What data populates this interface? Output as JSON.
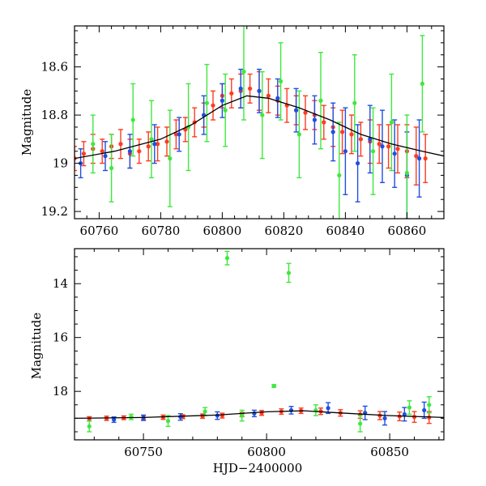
{
  "chart_data": [
    {
      "type": "scatter",
      "title": "",
      "xlabel": "",
      "ylabel": "Magnitude",
      "xlim": [
        60752,
        60872
      ],
      "ylim": [
        19.23,
        18.43
      ],
      "y_inverted": true,
      "xticks": [
        60760,
        60780,
        60800,
        60820,
        60840,
        60860
      ],
      "xtick_labels": [
        "60760",
        "60780",
        "60800",
        "60820",
        "60840",
        "60860"
      ],
      "yticks": [
        18.6,
        18.8,
        19.0,
        19.2
      ],
      "ytick_labels": [
        "18.6",
        "18.8",
        "19",
        "19.2"
      ],
      "grid": false,
      "legend": "none",
      "series": [
        {
          "color": "#ff3b1f",
          "x": [
            60752,
            60755,
            60758,
            60761,
            60764,
            60767,
            60770,
            60773,
            60776,
            60779,
            60782,
            60785,
            60788,
            60791,
            60794,
            60797,
            60800,
            60803,
            60806,
            60809,
            60812,
            60815,
            60818,
            60821,
            60824,
            60827,
            60830,
            60833,
            60836,
            60839,
            60842,
            60845,
            60848,
            60851,
            60854,
            60857,
            60860,
            60863,
            60866
          ],
          "y": [
            18.98,
            18.96,
            18.94,
            18.95,
            18.93,
            18.92,
            18.96,
            18.95,
            18.93,
            18.92,
            18.91,
            18.88,
            18.86,
            18.83,
            18.8,
            18.76,
            18.72,
            18.71,
            18.7,
            18.69,
            18.7,
            18.72,
            18.74,
            18.76,
            18.78,
            18.79,
            18.8,
            18.83,
            18.85,
            18.87,
            18.88,
            18.9,
            18.91,
            18.92,
            18.93,
            18.94,
            18.95,
            18.97,
            18.98
          ],
          "yerr": [
            0.05,
            0.05,
            0.06,
            0.05,
            0.05,
            0.06,
            0.06,
            0.05,
            0.06,
            0.07,
            0.06,
            0.06,
            0.05,
            0.06,
            0.05,
            0.06,
            0.05,
            0.06,
            0.07,
            0.06,
            0.08,
            0.07,
            0.06,
            0.07,
            0.06,
            0.07,
            0.06,
            0.07,
            0.08,
            0.09,
            0.08,
            0.07,
            0.09,
            0.08,
            0.09,
            0.1,
            0.11,
            0.12,
            0.1
          ]
        },
        {
          "color": "#1f4fe0",
          "x": [
            60754,
            60762,
            60770,
            60778,
            60786,
            60794,
            60800,
            60806,
            60812,
            60818,
            60824,
            60830,
            60836,
            60840,
            60844,
            60848,
            60852,
            60856,
            60860,
            60864
          ],
          "y": [
            19.0,
            18.97,
            18.95,
            18.92,
            18.88,
            18.8,
            18.74,
            18.69,
            18.7,
            18.73,
            18.78,
            18.82,
            18.87,
            18.95,
            19.0,
            18.9,
            18.93,
            18.96,
            19.05,
            18.98
          ],
          "yerr": [
            0.06,
            0.06,
            0.07,
            0.08,
            0.07,
            0.08,
            0.07,
            0.08,
            0.09,
            0.08,
            0.09,
            0.1,
            0.12,
            0.18,
            0.16,
            0.14,
            0.15,
            0.14,
            0.18,
            0.16
          ]
        },
        {
          "color": "#3ee83e",
          "x": [
            60758,
            60764,
            60771,
            60777,
            60783,
            60789,
            60795,
            60801,
            60807,
            60813,
            60819,
            60825,
            60832,
            60838,
            60843,
            60849,
            60855,
            60860,
            60865
          ],
          "y": [
            18.92,
            19.02,
            18.82,
            18.9,
            18.98,
            18.85,
            18.75,
            18.78,
            18.62,
            18.8,
            18.66,
            18.88,
            18.74,
            19.05,
            18.75,
            18.95,
            18.83,
            19.04,
            18.67
          ],
          "yerr": [
            0.12,
            0.14,
            0.15,
            0.16,
            0.2,
            0.18,
            0.16,
            0.15,
            0.2,
            0.18,
            0.16,
            0.18,
            0.2,
            0.22,
            0.2,
            0.18,
            0.2,
            0.24,
            0.2
          ]
        }
      ],
      "model_curve": {
        "color": "#000000",
        "x": [
          60752,
          60765,
          60780,
          60790,
          60800,
          60808,
          60815,
          60825,
          60835,
          60845,
          60855,
          60865,
          60872
        ],
        "y": [
          18.98,
          18.95,
          18.9,
          18.84,
          18.76,
          18.72,
          18.73,
          18.77,
          18.82,
          18.88,
          18.92,
          18.95,
          18.97
        ]
      }
    },
    {
      "type": "scatter",
      "title": "",
      "xlabel": "HJD−2400000",
      "ylabel": "Magnitude",
      "xlim": [
        60722,
        60872
      ],
      "ylim": [
        19.8,
        12.7
      ],
      "y_inverted": true,
      "xticks": [
        60750,
        60800,
        60850
      ],
      "xtick_labels": [
        "60750",
        "60800",
        "60850"
      ],
      "yticks": [
        14,
        16,
        18
      ],
      "ytick_labels": [
        "14",
        "16",
        "18"
      ],
      "grid": false,
      "legend": "none",
      "series": [
        {
          "color": "#ff3b1f",
          "x": [
            60728,
            60735,
            60742,
            60750,
            60758,
            60766,
            60774,
            60782,
            60790,
            60798,
            60806,
            60814,
            60822,
            60830,
            60838,
            60846,
            60854,
            60860,
            60866
          ],
          "y": [
            19.02,
            19.0,
            18.98,
            18.97,
            18.96,
            18.94,
            18.92,
            18.9,
            18.86,
            18.8,
            18.75,
            18.72,
            18.74,
            18.8,
            18.86,
            18.9,
            18.93,
            18.95,
            18.97
          ],
          "yerr": [
            0.08,
            0.08,
            0.07,
            0.08,
            0.08,
            0.07,
            0.08,
            0.09,
            0.08,
            0.09,
            0.1,
            0.1,
            0.12,
            0.12,
            0.14,
            0.15,
            0.16,
            0.2,
            0.22
          ]
        },
        {
          "color": "#1f4fe0",
          "x": [
            60738,
            60750,
            60765,
            60780,
            60795,
            60810,
            60825,
            60840,
            60848,
            60856,
            60864
          ],
          "y": [
            19.05,
            18.98,
            18.95,
            18.9,
            18.82,
            18.7,
            18.62,
            18.8,
            19.0,
            18.85,
            18.7
          ],
          "yerr": [
            0.1,
            0.1,
            0.12,
            0.14,
            0.12,
            0.14,
            0.2,
            0.25,
            0.25,
            0.25,
            0.3
          ]
        },
        {
          "color": "#3ee83e",
          "x": [
            60728,
            60745,
            60760,
            60775,
            60784,
            60790,
            60803,
            60809,
            60820,
            60838,
            60858,
            60866
          ],
          "y": [
            19.3,
            18.95,
            19.1,
            18.75,
            13.05,
            18.9,
            17.8,
            13.6,
            18.7,
            19.2,
            18.6,
            18.5
          ],
          "yerr": [
            0.2,
            0.1,
            0.2,
            0.15,
            0.25,
            0.2,
            0.05,
            0.35,
            0.2,
            0.3,
            0.25,
            0.3
          ]
        }
      ],
      "model_curve": {
        "color": "#000000",
        "x": [
          60722,
          60750,
          60780,
          60800,
          60815,
          60830,
          60850,
          60872
        ],
        "y": [
          19.0,
          18.97,
          18.88,
          18.76,
          18.72,
          18.8,
          18.9,
          18.97
        ]
      }
    }
  ]
}
